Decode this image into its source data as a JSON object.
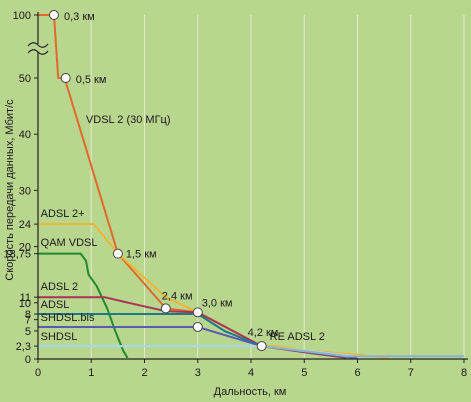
{
  "chart_data": {
    "type": "line",
    "xlabel": "Дальность, км",
    "ylabel": "Скорость передачи данных, Мбит/с",
    "xlim": [
      0,
      8
    ],
    "ylim_lower": [
      0,
      50
    ],
    "ylim_upper": [
      90,
      100
    ],
    "axis_break": "between 50 and 100",
    "x_ticks": [
      "0",
      "1",
      "2",
      "3",
      "4",
      "5",
      "6",
      "7",
      "8"
    ],
    "y_ticks": [
      {
        "v": 0,
        "label": "0"
      },
      {
        "v": 2.3,
        "label": "2,3"
      },
      {
        "v": 5,
        "label": "5"
      },
      {
        "v": 7,
        "label": "7"
      },
      {
        "v": 8,
        "label": "8"
      },
      {
        "v": 10,
        "label": "10"
      },
      {
        "v": 11,
        "label": "11"
      },
      {
        "v": 18.75,
        "label": "18,75"
      },
      {
        "v": 20,
        "label": "20"
      },
      {
        "v": 24,
        "label": "24"
      },
      {
        "v": 30,
        "label": "30"
      },
      {
        "v": 40,
        "label": "40"
      },
      {
        "v": 50,
        "label": "50"
      },
      {
        "v": 100,
        "label": "100"
      }
    ],
    "series": [
      {
        "name": "VDSL 2 (30 МГц)",
        "color": "#e06a2a",
        "points": [
          [
            0,
            100
          ],
          [
            0.3,
            100
          ],
          [
            0.38,
            50
          ],
          [
            0.5,
            50
          ],
          [
            1.5,
            18.75
          ],
          [
            2.4,
            9
          ],
          [
            3.0,
            8.3
          ],
          [
            4.2,
            2.3
          ],
          [
            5.5,
            1.0
          ],
          [
            6.0,
            0.2
          ]
        ]
      },
      {
        "name": "ADSL 2+",
        "color": "#f2b534",
        "points": [
          [
            0,
            24
          ],
          [
            1.05,
            24
          ],
          [
            1.5,
            18.75
          ],
          [
            2.4,
            11
          ],
          [
            3.0,
            8.3
          ],
          [
            4.2,
            2.3
          ],
          [
            4.5,
            2.3
          ],
          [
            5.0,
            1.5
          ],
          [
            6.0,
            0.8
          ],
          [
            6.6,
            0.1
          ]
        ]
      },
      {
        "name": "QAM VDSL",
        "color": "#1f8a2e",
        "points": [
          [
            0,
            18.75
          ],
          [
            0.8,
            18.75
          ],
          [
            0.9,
            17.5
          ],
          [
            0.95,
            15
          ],
          [
            1.1,
            13
          ],
          [
            1.3,
            9
          ],
          [
            1.45,
            5
          ],
          [
            1.6,
            1.5
          ],
          [
            1.68,
            0.2
          ]
        ]
      },
      {
        "name": "ADSL 2",
        "color": "#a83456",
        "points": [
          [
            0,
            11
          ],
          [
            1.25,
            11
          ],
          [
            1.7,
            10
          ],
          [
            2.4,
            8.5
          ],
          [
            3.0,
            8.3
          ],
          [
            4.2,
            2.3
          ],
          [
            5.0,
            1.2
          ],
          [
            5.8,
            0.2
          ]
        ]
      },
      {
        "name": "ADSL",
        "color": "#1b7a8a",
        "points": [
          [
            0,
            8
          ],
          [
            3.0,
            8
          ],
          [
            3.5,
            5
          ],
          [
            4.2,
            2.3
          ]
        ]
      },
      {
        "name": "SHDSL.bis",
        "color": "#5a5ab0",
        "points": [
          [
            0,
            5.7
          ],
          [
            3.0,
            5.7
          ],
          [
            4.2,
            2.3
          ],
          [
            6.0,
            0.1
          ]
        ]
      },
      {
        "name": "SHDSL",
        "color": "#a8d8ee",
        "points": [
          [
            0,
            2.3
          ],
          [
            4.2,
            2.3
          ],
          [
            6.0,
            0.5
          ],
          [
            8.0,
            0.5
          ]
        ]
      },
      {
        "name": "RE ADSL 2",
        "color": "#8ab4c4",
        "points": [
          [
            4.2,
            2.3
          ],
          [
            5.8,
            0.5
          ],
          [
            8.0,
            0.5
          ]
        ]
      }
    ],
    "markers": [
      {
        "x": 0.3,
        "y": 100,
        "label": "0,3 км"
      },
      {
        "x": 0.52,
        "y": 50,
        "label": "0,5 км"
      },
      {
        "x": 1.5,
        "y": 18.75,
        "label": "1,5 км"
      },
      {
        "x": 2.4,
        "y": 9,
        "label": "2,4 км"
      },
      {
        "x": 3.0,
        "y": 8.3,
        "label": "3,0 км"
      },
      {
        "x": 3.0,
        "y": 5.7,
        "label": ""
      },
      {
        "x": 4.2,
        "y": 2.3,
        "label": "4,2 км"
      }
    ],
    "series_labels": [
      {
        "text": "VDSL 2 (30 МГц)",
        "x": 0.9,
        "y": 42
      },
      {
        "text": "ADSL 2+",
        "x": 0.05,
        "y": 25.3
      },
      {
        "text": "QAM VDSL",
        "x": 0.05,
        "y": 20.1
      },
      {
        "text": "ADSL 2",
        "x": 0.05,
        "y": 12.3
      },
      {
        "text": "ADSL",
        "x": 0.05,
        "y": 9.1
      },
      {
        "text": "SHDSL.bis",
        "x": 0.05,
        "y": 6.8
      },
      {
        "text": "SHDSL",
        "x": 0.05,
        "y": 3.4
      },
      {
        "text": "RE ADSL 2",
        "x": 4.35,
        "y": 3.4
      }
    ]
  }
}
